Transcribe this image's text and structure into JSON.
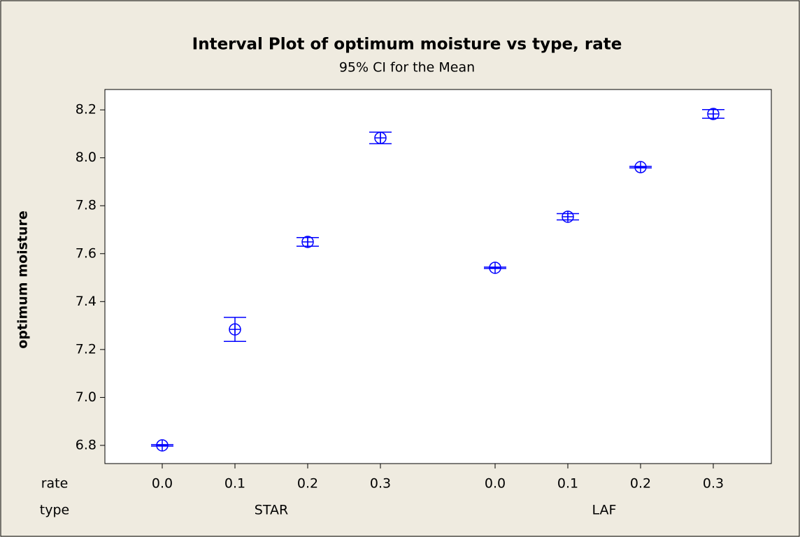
{
  "chart_data": {
    "type": "interval",
    "title": "Interval Plot of optimum moisture vs type, rate",
    "subtitle": "95% CI for the Mean",
    "ylabel": "optimum moisture",
    "x_level_labels": [
      "rate",
      "type"
    ],
    "color": "#0000ff",
    "groups": [
      {
        "label": "STAR",
        "categories": [
          "0.0",
          "0.1",
          "0.2",
          "0.3"
        ],
        "values": [
          6.8,
          7.284,
          7.649,
          8.083
        ],
        "errors": [
          0.003,
          0.05,
          0.018,
          0.024
        ]
      },
      {
        "label": "LAF",
        "categories": [
          "0.0",
          "0.1",
          "0.2",
          "0.3"
        ],
        "values": [
          7.541,
          7.754,
          7.961,
          8.183
        ],
        "errors": [
          0.003,
          0.013,
          0.003,
          0.018
        ]
      }
    ],
    "ylim": [
      6.724,
      8.285
    ],
    "yticks": [
      {
        "value": 6.8,
        "label": "6.8"
      },
      {
        "value": 7.0,
        "label": "7.0"
      },
      {
        "value": 7.2,
        "label": "7.2"
      },
      {
        "value": 7.4,
        "label": "7.4"
      },
      {
        "value": 7.6,
        "label": "7.6"
      },
      {
        "value": 7.8,
        "label": "7.8"
      },
      {
        "value": 8.0,
        "label": "8.0"
      },
      {
        "value": 8.2,
        "label": "8.2"
      }
    ]
  }
}
